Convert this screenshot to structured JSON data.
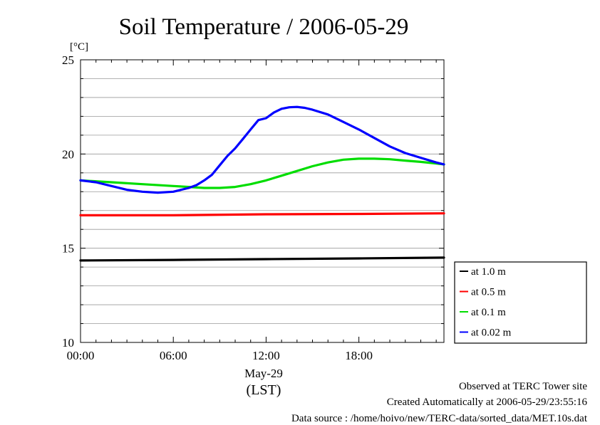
{
  "chart_data": {
    "type": "line",
    "title": "Soil Temperature / 2006-05-29",
    "ylabel": "[°C]",
    "xlabel_date": "May-29",
    "xlabel_unit": "(LST)",
    "ylim": [
      10,
      25
    ],
    "xlim": [
      0,
      23.5
    ],
    "y_ticks": [
      10,
      15,
      20,
      25
    ],
    "y_tick_labels": [
      "10",
      "15",
      "20",
      "25"
    ],
    "x_ticks": [
      0,
      6,
      12,
      18
    ],
    "x_tick_labels": [
      "00:00",
      "06:00",
      "12:00",
      "18:00"
    ],
    "grid": true,
    "legend_position": "right-bottom",
    "series": [
      {
        "name": "at 1.0 m",
        "color": "#000000",
        "x": [
          0,
          6,
          12,
          18,
          23.5
        ],
        "y": [
          14.35,
          14.38,
          14.42,
          14.46,
          14.5
        ]
      },
      {
        "name": "at 0.5 m",
        "color": "#ff0000",
        "x": [
          0,
          6,
          12,
          18,
          23.5
        ],
        "y": [
          16.75,
          16.75,
          16.8,
          16.82,
          16.85
        ]
      },
      {
        "name": "at 0.1 m",
        "color": "#00dd00",
        "x": [
          0,
          2,
          4,
          6,
          7,
          8,
          9,
          10,
          11,
          12,
          13,
          14,
          15,
          16,
          17,
          18,
          19,
          20,
          21,
          22,
          23,
          23.5
        ],
        "y": [
          18.6,
          18.5,
          18.4,
          18.3,
          18.25,
          18.2,
          18.2,
          18.25,
          18.4,
          18.6,
          18.85,
          19.1,
          19.35,
          19.55,
          19.7,
          19.75,
          19.75,
          19.72,
          19.65,
          19.58,
          19.5,
          19.45
        ]
      },
      {
        "name": "at 0.02 m",
        "color": "#0000ff",
        "x": [
          0,
          1,
          2,
          3,
          4,
          5,
          6,
          7,
          7.5,
          8,
          8.5,
          9,
          9.5,
          10,
          10.5,
          11,
          11.5,
          12,
          12.5,
          13,
          13.5,
          14,
          14.5,
          15,
          16,
          17,
          18,
          19,
          20,
          21,
          22,
          23,
          23.5
        ],
        "y": [
          18.6,
          18.5,
          18.3,
          18.1,
          18.0,
          17.95,
          18.0,
          18.2,
          18.35,
          18.6,
          18.9,
          19.4,
          19.9,
          20.3,
          20.8,
          21.3,
          21.8,
          21.9,
          22.2,
          22.4,
          22.48,
          22.5,
          22.45,
          22.35,
          22.1,
          21.7,
          21.3,
          20.85,
          20.4,
          20.05,
          19.8,
          19.55,
          19.45
        ]
      }
    ]
  },
  "footer": {
    "line1": "Observed at TERC Tower site",
    "line2": "Created Automatically at 2006-05-29/23:55:16",
    "line3": "Data source : /home/hoivo/new/TERC-data/sorted_data/MET.10s.dat"
  }
}
